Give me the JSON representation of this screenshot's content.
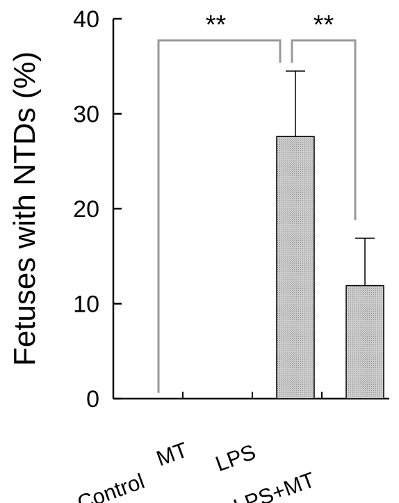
{
  "chart_data": {
    "type": "bar",
    "title": "",
    "xlabel": "",
    "ylabel": "Fetuses with NTDs (%)",
    "ylim": [
      0,
      40
    ],
    "yticks": [
      "0",
      "10",
      "20",
      "30",
      "40"
    ],
    "categories": [
      "Control",
      "MT",
      "LPS",
      "LPS+MT"
    ],
    "values": [
      0,
      0,
      27.6,
      11.9
    ],
    "errors": [
      0,
      0,
      6.9,
      5.0
    ],
    "significance": [
      {
        "from": "Control",
        "to": "LPS",
        "label": "**"
      },
      {
        "from": "LPS",
        "to": "LPS+MT",
        "label": "**"
      }
    ],
    "grid": false,
    "legend": "none",
    "colors": {
      "bar_fill": "#c8c8c8",
      "bar_stroke": "#000000",
      "bracket": "#999999",
      "axis": "#000000"
    }
  }
}
